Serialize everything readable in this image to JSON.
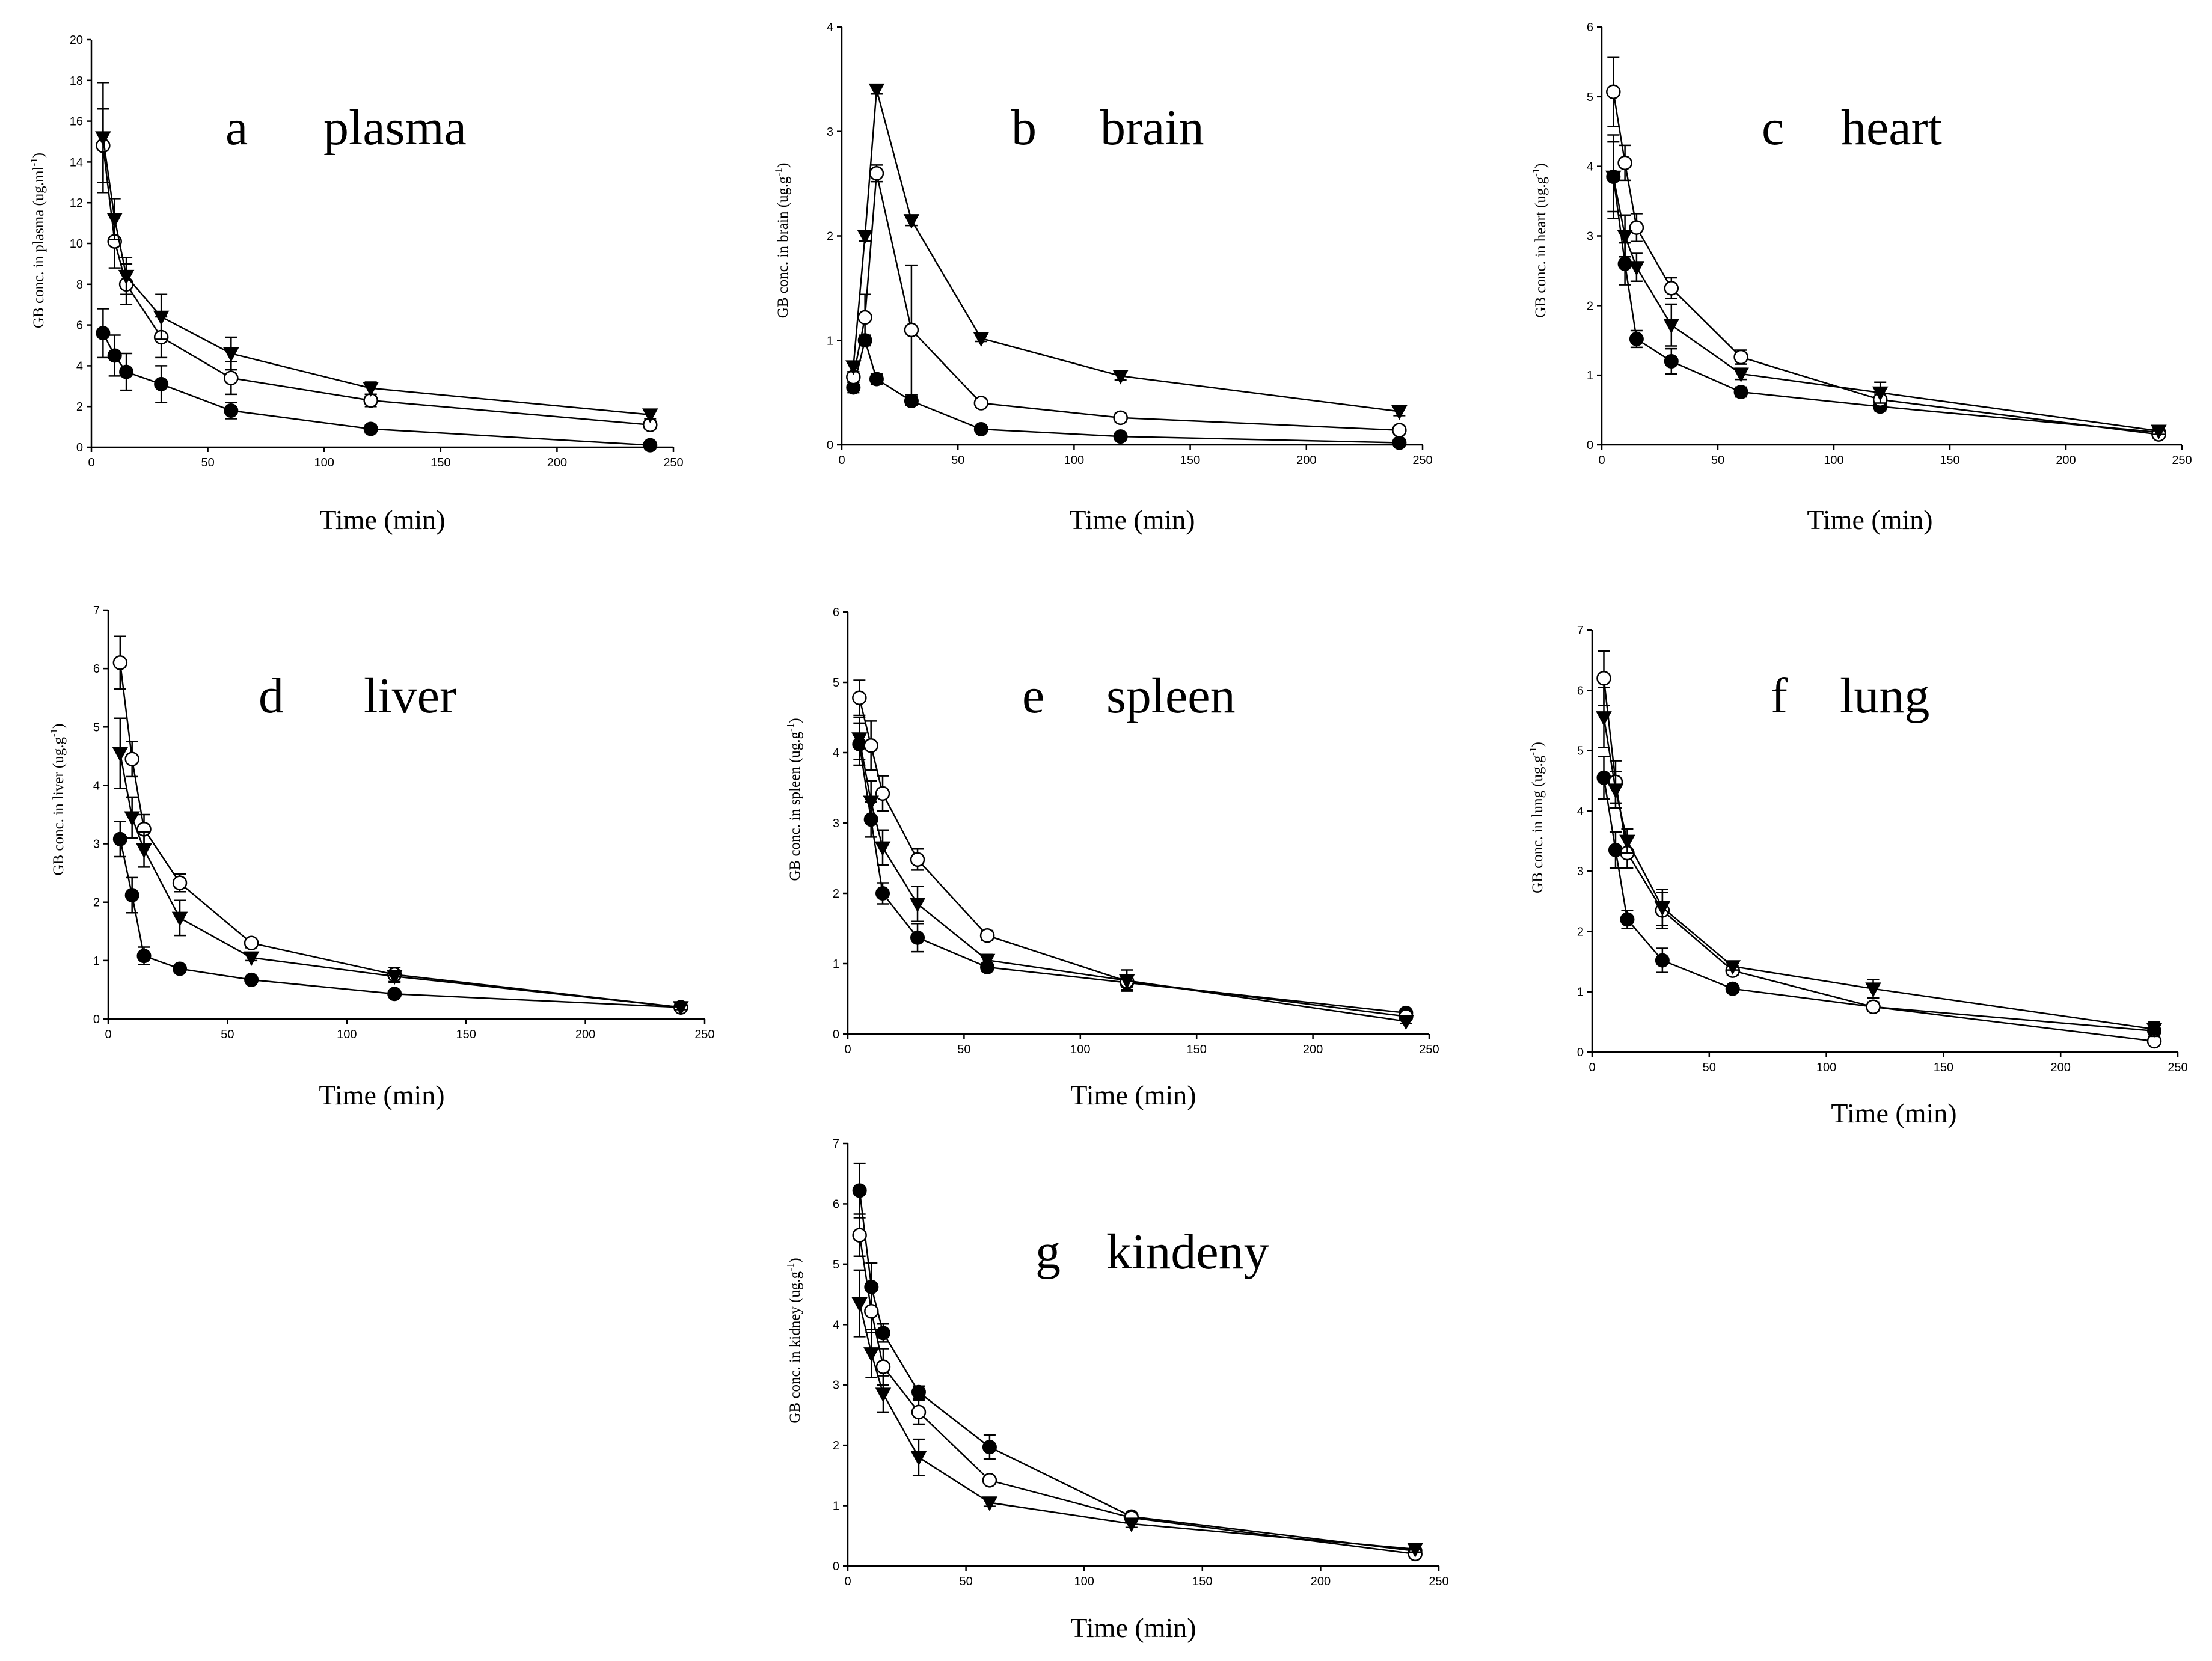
{
  "figure": {
    "x_label": "Time (min)"
  },
  "chart_data": [
    {
      "type": "line",
      "panel_letter": "a",
      "panel_name": "plasma",
      "ylabel_main": "GB conc. in plasma (ug.ml",
      "ylabel_sup": "-1",
      "ylabel_tail": ")",
      "xlim": [
        0,
        250
      ],
      "ylim": [
        0,
        20
      ],
      "xticks": [
        0,
        50,
        100,
        150,
        200,
        250
      ],
      "yticks": [
        0,
        2,
        4,
        6,
        8,
        10,
        12,
        14,
        16,
        18,
        20
      ],
      "x": [
        5,
        10,
        15,
        30,
        60,
        120,
        240
      ],
      "series": [
        {
          "marker": "filled-circle",
          "y": [
            5.6,
            4.5,
            3.7,
            3.1,
            1.8,
            0.9,
            0.1
          ],
          "err": [
            1.2,
            1.0,
            0.9,
            0.9,
            0.4,
            0.2,
            0.05
          ]
        },
        {
          "marker": "open-circle",
          "y": [
            14.8,
            10.1,
            8.0,
            5.4,
            3.4,
            2.3,
            1.1
          ],
          "err": [
            1.8,
            1.3,
            1.0,
            1.0,
            0.8,
            0.3,
            0.2
          ]
        },
        {
          "marker": "filled-triangle-down",
          "y": [
            15.2,
            11.2,
            8.4,
            6.4,
            4.6,
            2.9,
            1.6
          ],
          "err": [
            2.7,
            1.0,
            0.9,
            1.1,
            0.8,
            0.3,
            0.2
          ]
        }
      ]
    },
    {
      "type": "line",
      "panel_letter": "b",
      "panel_name": "brain",
      "ylabel_main": "GB conc. in brain (ug.g",
      "ylabel_sup": "-1",
      "ylabel_tail": ")",
      "xlim": [
        0,
        250
      ],
      "ylim": [
        0,
        4
      ],
      "xticks": [
        0,
        50,
        100,
        150,
        200,
        250
      ],
      "yticks": [
        0,
        1,
        2,
        3,
        4
      ],
      "x": [
        5,
        10,
        15,
        30,
        60,
        120,
        240
      ],
      "series": [
        {
          "marker": "filled-circle",
          "y": [
            0.55,
            1.0,
            0.63,
            0.42,
            0.15,
            0.08,
            0.02
          ],
          "err": [
            0.05,
            0.05,
            0.05,
            0.04,
            0.02,
            0.02,
            0.01
          ]
        },
        {
          "marker": "open-circle",
          "y": [
            0.65,
            1.22,
            2.6,
            1.1,
            0.4,
            0.26,
            0.14
          ],
          "err": [
            0.05,
            0.22,
            0.08,
            0.62,
            0.04,
            0.04,
            0.04
          ]
        },
        {
          "marker": "filled-triangle-down",
          "y": [
            0.75,
            2.0,
            3.4,
            2.15,
            1.02,
            0.66,
            0.32
          ],
          "err": [
            0.05,
            0.05,
            0.04,
            0.05,
            0.03,
            0.04,
            0.04
          ]
        }
      ]
    },
    {
      "type": "line",
      "panel_letter": "c",
      "panel_name": "heart",
      "ylabel_main": "GB conc. in heart (ug.g",
      "ylabel_sup": "-1",
      "ylabel_tail": ")",
      "xlim": [
        0,
        250
      ],
      "ylim": [
        0,
        6
      ],
      "xticks": [
        0,
        50,
        100,
        150,
        200,
        250
      ],
      "yticks": [
        0,
        1,
        2,
        3,
        4,
        5,
        6
      ],
      "x": [
        5,
        10,
        15,
        30,
        60,
        120,
        240
      ],
      "series": [
        {
          "marker": "filled-circle",
          "y": [
            3.85,
            2.6,
            1.52,
            1.2,
            0.76,
            0.55,
            0.18
          ],
          "err": [
            0.5,
            0.3,
            0.12,
            0.18,
            0.07,
            0.06,
            0.04
          ]
        },
        {
          "marker": "open-circle",
          "y": [
            5.07,
            4.05,
            3.12,
            2.25,
            1.26,
            0.65,
            0.15
          ],
          "err": [
            0.5,
            0.25,
            0.2,
            0.15,
            0.1,
            0.08,
            0.04
          ]
        },
        {
          "marker": "filled-triangle-down",
          "y": [
            3.85,
            3.0,
            2.55,
            1.72,
            1.02,
            0.75,
            0.2
          ],
          "err": [
            0.6,
            0.3,
            0.2,
            0.3,
            0.08,
            0.15,
            0.05
          ]
        }
      ]
    },
    {
      "type": "line",
      "panel_letter": "d",
      "panel_name": "liver",
      "ylabel_main": "GB conc. in liver (ug.g",
      "ylabel_sup": "-1",
      "ylabel_tail": ")",
      "xlim": [
        0,
        250
      ],
      "ylim": [
        0,
        7
      ],
      "xticks": [
        0,
        50,
        100,
        150,
        200,
        250
      ],
      "yticks": [
        0,
        1,
        2,
        3,
        4,
        5,
        6,
        7
      ],
      "x": [
        5,
        10,
        15,
        30,
        60,
        120,
        240
      ],
      "series": [
        {
          "marker": "filled-circle",
          "y": [
            3.08,
            2.12,
            1.08,
            0.86,
            0.67,
            0.43,
            0.2
          ],
          "err": [
            0.3,
            0.3,
            0.15,
            0.06,
            0.05,
            0.05,
            0.04
          ]
        },
        {
          "marker": "open-circle",
          "y": [
            6.1,
            4.45,
            3.25,
            2.33,
            1.3,
            0.76,
            0.2
          ],
          "err": [
            0.45,
            0.3,
            0.25,
            0.15,
            0.08,
            0.12,
            0.04
          ]
        },
        {
          "marker": "filled-triangle-down",
          "y": [
            4.55,
            3.45,
            2.9,
            1.73,
            1.05,
            0.73,
            0.2
          ],
          "err": [
            0.6,
            0.35,
            0.3,
            0.3,
            0.05,
            0.1,
            0.04
          ]
        }
      ]
    },
    {
      "type": "line",
      "panel_letter": "e",
      "panel_name": "spleen",
      "ylabel_main": "GB conc. in spleen (ug.g",
      "ylabel_sup": "-1",
      "ylabel_tail": ")",
      "xlim": [
        0,
        250
      ],
      "ylim": [
        0,
        6
      ],
      "xticks": [
        0,
        50,
        100,
        150,
        200,
        250
      ],
      "yticks": [
        0,
        1,
        2,
        3,
        4,
        5,
        6
      ],
      "x": [
        5,
        10,
        15,
        30,
        60,
        120,
        240
      ],
      "series": [
        {
          "marker": "filled-circle",
          "y": [
            4.12,
            3.05,
            2.0,
            1.37,
            0.95,
            0.73,
            0.3
          ],
          "err": [
            0.3,
            0.25,
            0.15,
            0.2,
            0.06,
            0.1,
            0.04
          ]
        },
        {
          "marker": "open-circle",
          "y": [
            4.78,
            4.1,
            3.42,
            2.48,
            1.4,
            0.75,
            0.25
          ],
          "err": [
            0.25,
            0.35,
            0.25,
            0.15,
            0.07,
            0.08,
            0.04
          ]
        },
        {
          "marker": "filled-triangle-down",
          "y": [
            4.2,
            3.3,
            2.65,
            1.85,
            1.05,
            0.76,
            0.18
          ],
          "err": [
            0.3,
            0.3,
            0.25,
            0.25,
            0.08,
            0.15,
            0.03
          ]
        }
      ]
    },
    {
      "type": "line",
      "panel_letter": "f",
      "panel_name": "lung",
      "ylabel_main": "GB conc. in lung (ug.g",
      "ylabel_sup": "-1",
      "ylabel_tail": ")",
      "xlim": [
        0,
        250
      ],
      "ylim": [
        0,
        7
      ],
      "xticks": [
        0,
        50,
        100,
        150,
        200,
        250
      ],
      "yticks": [
        0,
        1,
        2,
        3,
        4,
        5,
        6,
        7
      ],
      "x": [
        5,
        10,
        15,
        30,
        60,
        120,
        240
      ],
      "series": [
        {
          "marker": "filled-circle",
          "y": [
            4.55,
            3.35,
            2.2,
            1.52,
            1.05,
            0.75,
            0.35
          ],
          "err": [
            0.35,
            0.3,
            0.15,
            0.2,
            0.05,
            0.07,
            0.1
          ]
        },
        {
          "marker": "open-circle",
          "y": [
            6.2,
            4.48,
            3.3,
            2.35,
            1.35,
            0.75,
            0.18
          ],
          "err": [
            0.45,
            0.35,
            0.25,
            0.3,
            0.08,
            0.08,
            0.04
          ]
        },
        {
          "marker": "filled-triangle-down",
          "y": [
            5.55,
            4.35,
            3.5,
            2.4,
            1.42,
            1.05,
            0.38
          ],
          "err": [
            0.5,
            0.3,
            0.2,
            0.3,
            0.06,
            0.15,
            0.12
          ]
        }
      ]
    },
    {
      "type": "line",
      "panel_letter": "g",
      "panel_name": "kindeny",
      "ylabel_main": "GB conc. in kidney (ug.g",
      "ylabel_sup": "-1",
      "ylabel_tail": ")",
      "xlim": [
        0,
        250
      ],
      "ylim": [
        0,
        7
      ],
      "xticks": [
        0,
        50,
        100,
        150,
        200,
        250
      ],
      "yticks": [
        0,
        1,
        2,
        3,
        4,
        5,
        6,
        7
      ],
      "x": [
        5,
        10,
        15,
        30,
        60,
        120,
        240
      ],
      "series": [
        {
          "marker": "filled-circle",
          "y": [
            6.22,
            4.62,
            3.86,
            2.88,
            1.97,
            0.82,
            0.25
          ],
          "err": [
            0.45,
            0.4,
            0.15,
            0.1,
            0.2,
            0.06,
            0.05
          ]
        },
        {
          "marker": "open-circle",
          "y": [
            5.48,
            4.22,
            3.3,
            2.55,
            1.42,
            0.8,
            0.2
          ],
          "err": [
            0.35,
            0.35,
            0.3,
            0.2,
            0.06,
            0.06,
            0.05
          ]
        },
        {
          "marker": "filled-triangle-down",
          "y": [
            4.35,
            3.52,
            2.85,
            1.8,
            1.05,
            0.7,
            0.28
          ],
          "err": [
            0.55,
            0.4,
            0.3,
            0.3,
            0.06,
            0.06,
            0.05
          ]
        }
      ]
    }
  ]
}
